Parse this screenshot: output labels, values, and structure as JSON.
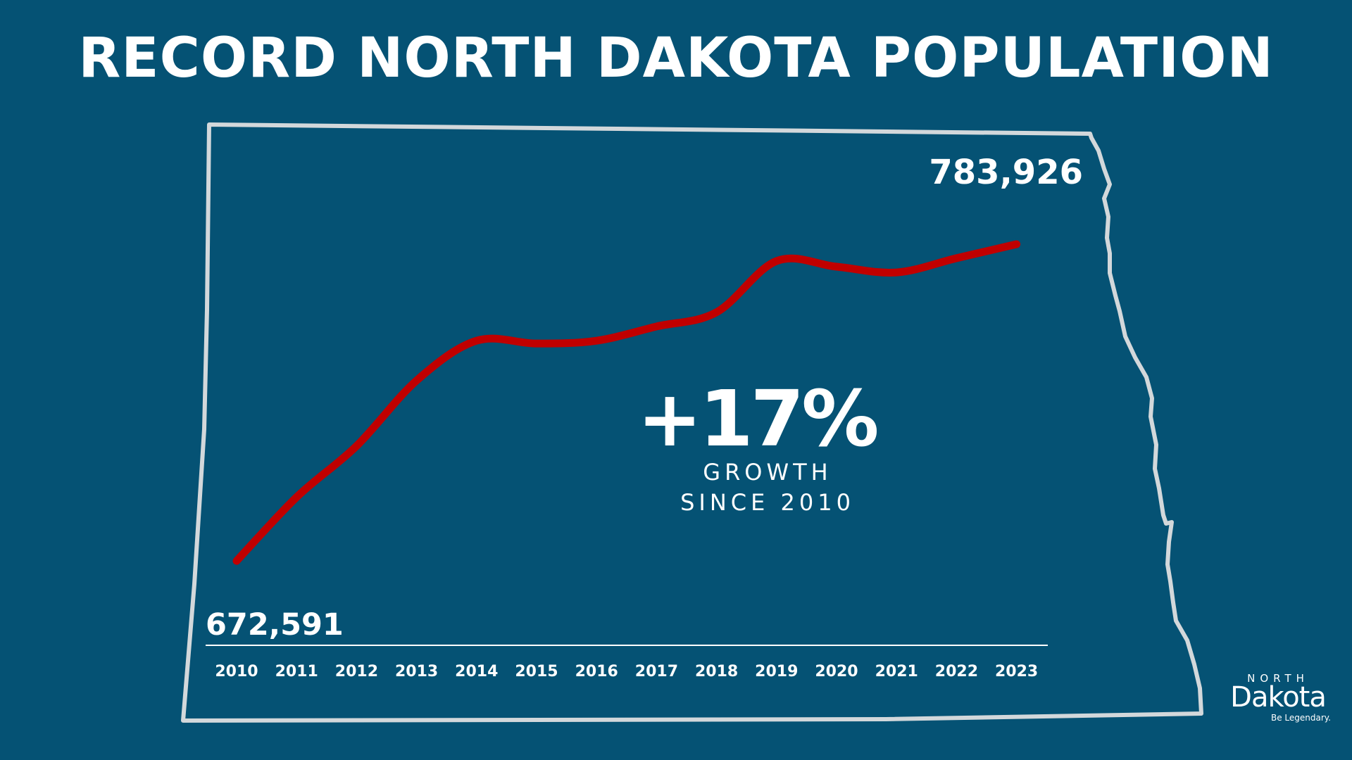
{
  "title": "RECORD NORTH DAKOTA POPULATION",
  "colors": {
    "background": "#055274",
    "series": "#c00000",
    "outline": "#d3d8db",
    "text": "#ffffff"
  },
  "chart_data": {
    "type": "line",
    "title": "RECORD NORTH DAKOTA POPULATION",
    "xlabel": "",
    "ylabel": "",
    "x": [
      "2010",
      "2011",
      "2012",
      "2013",
      "2014",
      "2015",
      "2016",
      "2017",
      "2018",
      "2019",
      "2020",
      "2021",
      "2022",
      "2023"
    ],
    "values": [
      672591,
      695000,
      713000,
      736000,
      750000,
      749000,
      750000,
      755000,
      760000,
      778000,
      776000,
      774000,
      779000,
      783926
    ],
    "ylim": [
      660000,
      800000
    ],
    "data_labels": {
      "start": "672,591",
      "end": "783,926"
    },
    "annotation": {
      "value": "+17%",
      "line1": "GROWTH",
      "line2": "SINCE 2010"
    },
    "grid": false,
    "legend": "none"
  },
  "logo": {
    "north": "NORTH",
    "dakota": "Dakota",
    "tagline": "Be Legendary."
  }
}
